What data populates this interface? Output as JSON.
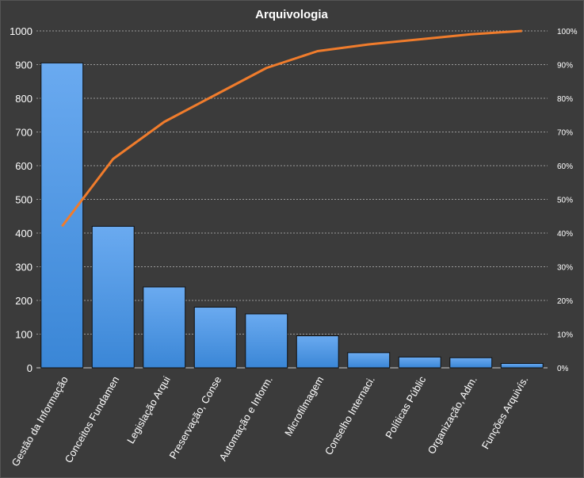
{
  "chart_data": {
    "type": "bar",
    "title": "Arquivologia",
    "categories": [
      "Gestão da Informação",
      "Conceitos Fundamen",
      "Legislação Arqui",
      "Preservação, Conse",
      "Automação e Inform.",
      "Microfilmagem",
      "Conselho Internaci.",
      "Políticas Públic",
      "Organização, Adm.",
      "Funções Arquivís."
    ],
    "series": [
      {
        "values": [
          905,
          420,
          240,
          180,
          160,
          95,
          45,
          32,
          30,
          13
        ]
      },
      {
        "type": "line",
        "axis": "secondary",
        "values": [
          42,
          62,
          73,
          81,
          89,
          94,
          96,
          97.5,
          99,
          100
        ]
      }
    ],
    "ylim": [
      0,
      1000
    ],
    "yticks": [
      "0",
      "100",
      "200",
      "300",
      "400",
      "500",
      "600",
      "700",
      "800",
      "900",
      "1000"
    ],
    "y2lim": [
      0,
      100
    ],
    "y2ticks": [
      "0%",
      "10%",
      "20%",
      "30%",
      "40%",
      "50%",
      "60%",
      "70%",
      "80%",
      "90%",
      "100%"
    ],
    "grid": true,
    "colors": {
      "bar_top": "#6aaaf0",
      "bar_bottom": "#3a86d6",
      "line": "#f07c2c",
      "background": "#3b3b3b"
    }
  }
}
